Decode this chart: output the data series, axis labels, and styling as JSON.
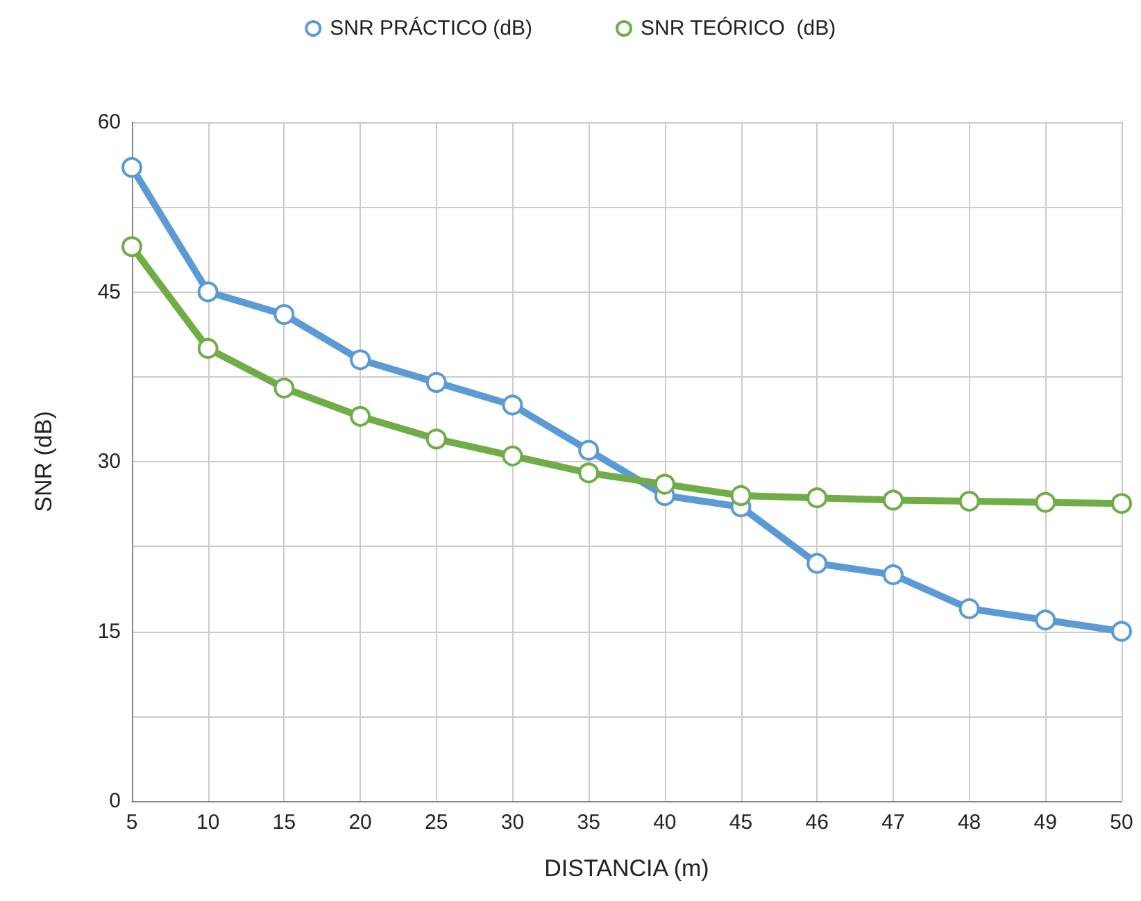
{
  "chart_data": {
    "type": "line",
    "xlabel": "DISTANCIA (m)",
    "ylabel": "SNR (dB)",
    "categories": [
      "5",
      "10",
      "15",
      "20",
      "25",
      "30",
      "35",
      "40",
      "45",
      "46",
      "47",
      "48",
      "49",
      "50"
    ],
    "series": [
      {
        "name": "SNR PRÁCTICO (dB)",
        "color": "#5b9bd5",
        "values": [
          56,
          45,
          43,
          39,
          37,
          35,
          31,
          27,
          26,
          21,
          20,
          17,
          16,
          15
        ]
      },
      {
        "name": "SNR TEÓRICO  (dB)",
        "color": "#70ad47",
        "values": [
          49,
          40,
          36.5,
          34,
          32,
          30.5,
          29,
          28,
          27,
          26.8,
          26.6,
          26.5,
          26.4,
          26.3
        ]
      }
    ],
    "ylim": [
      0,
      60
    ],
    "yticks": [
      0,
      {
        "value": 7.5,
        "label": null
      },
      15,
      {
        "value": 22.5,
        "label": null
      },
      30,
      {
        "value": 37.5,
        "label": null
      },
      45,
      {
        "value": 52.5,
        "label": null
      },
      60
    ],
    "grid": true,
    "legend": "top",
    "marker": "circle",
    "line_style": "solid"
  }
}
